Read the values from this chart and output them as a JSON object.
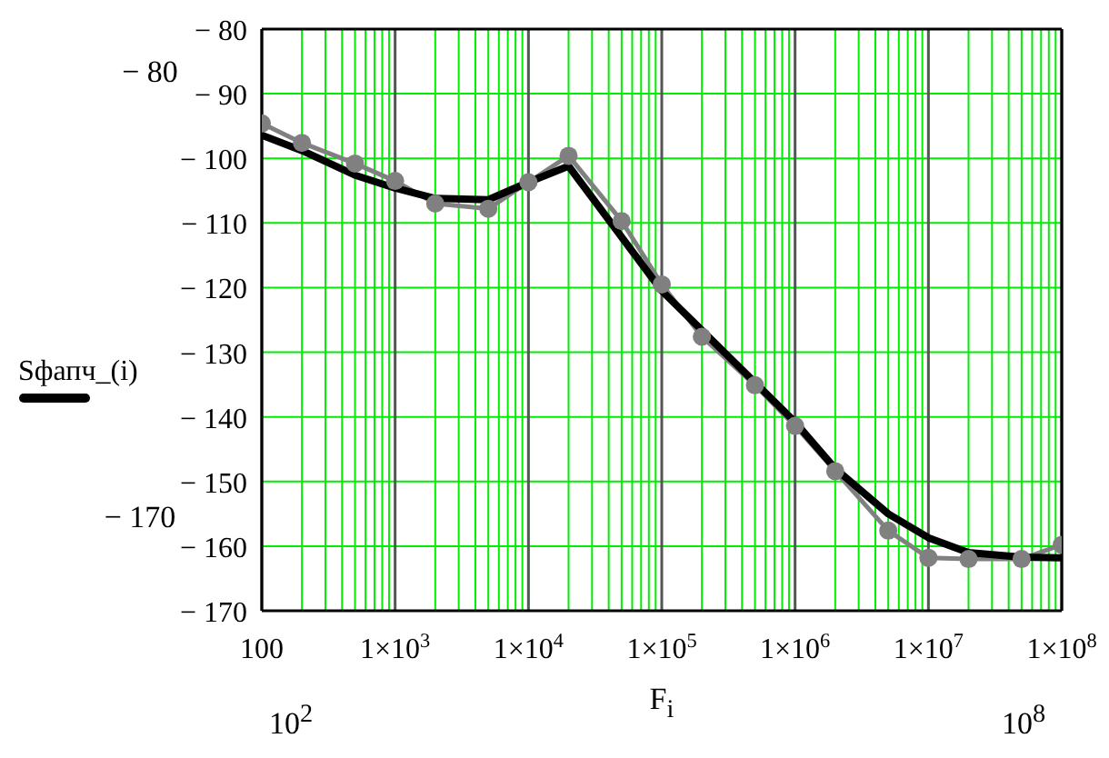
{
  "chart_data": {
    "type": "line",
    "xlabel": "F$_{i}$",
    "log": "x",
    "grid": true,
    "legend": "left",
    "xlim": [
      100,
      100000000
    ],
    "xticks": [
      100,
      {
        "value": 1000,
        "label": "1×10$^{3}$"
      },
      {
        "value": 10000,
        "label": "1×10$^{4}$"
      },
      {
        "value": 100000,
        "label": "1×10$^{5}$"
      },
      {
        "value": 1000000,
        "label": "1×10$^{6}$"
      },
      {
        "value": 10000000,
        "label": "1×10$^{7}$"
      },
      {
        "value": 100000000,
        "label": "1×10$^{8}$"
      }
    ],
    "ylim": [
      -170,
      -80
    ],
    "yticks": [
      {
        "value": -80,
        "label": "− 80"
      },
      {
        "value": -90,
        "label": "− 90"
      },
      {
        "value": -100,
        "label": "− 100"
      },
      {
        "value": -110,
        "label": "− 110"
      },
      {
        "value": -120,
        "label": "− 120"
      },
      {
        "value": -130,
        "label": "− 130"
      },
      {
        "value": -140,
        "label": "− 140"
      },
      {
        "value": -150,
        "label": "− 150"
      },
      {
        "value": -160,
        "label": "− 160"
      },
      {
        "value": -170,
        "label": "− 170"
      }
    ],
    "annotations": [
      "− 80",
      "− 170",
      "10$^{2}$",
      "10$^{8}$"
    ],
    "series": [
      {
        "color": "#808080",
        "marker": "circle",
        "x": [
          100,
          200,
          500,
          1000,
          2000,
          5000,
          10000,
          20000,
          50000,
          100000,
          200000,
          500000,
          1000000,
          2000000,
          5000000,
          10000000,
          20000000,
          50000000,
          100000000
        ],
        "values": [
          -94.6,
          -97.6,
          -100.8,
          -103.5,
          -107,
          -107.8,
          -103.7,
          -99.6,
          -109.7,
          -119.5,
          -127.6,
          -135.1,
          -141.4,
          -148.4,
          -157.6,
          -161.8,
          -162,
          -162,
          -159.8
        ]
      },
      {
        "name": "Sфапч_(i)",
        "color": "#000000",
        "marker": "none",
        "x": [
          100,
          200,
          500,
          1000,
          2000,
          5000,
          10000,
          20000,
          100000,
          1000000,
          2000000,
          5000000,
          10000000,
          20000000,
          50000000,
          100000000
        ],
        "values": [
          -96.4,
          -98.8,
          -102.6,
          -104.6,
          -106.2,
          -106.4,
          -103.7,
          -101.2,
          -120.5,
          -140.8,
          -148,
          -155,
          -158.7,
          -161,
          -161.7,
          -161.8
        ]
      }
    ]
  }
}
